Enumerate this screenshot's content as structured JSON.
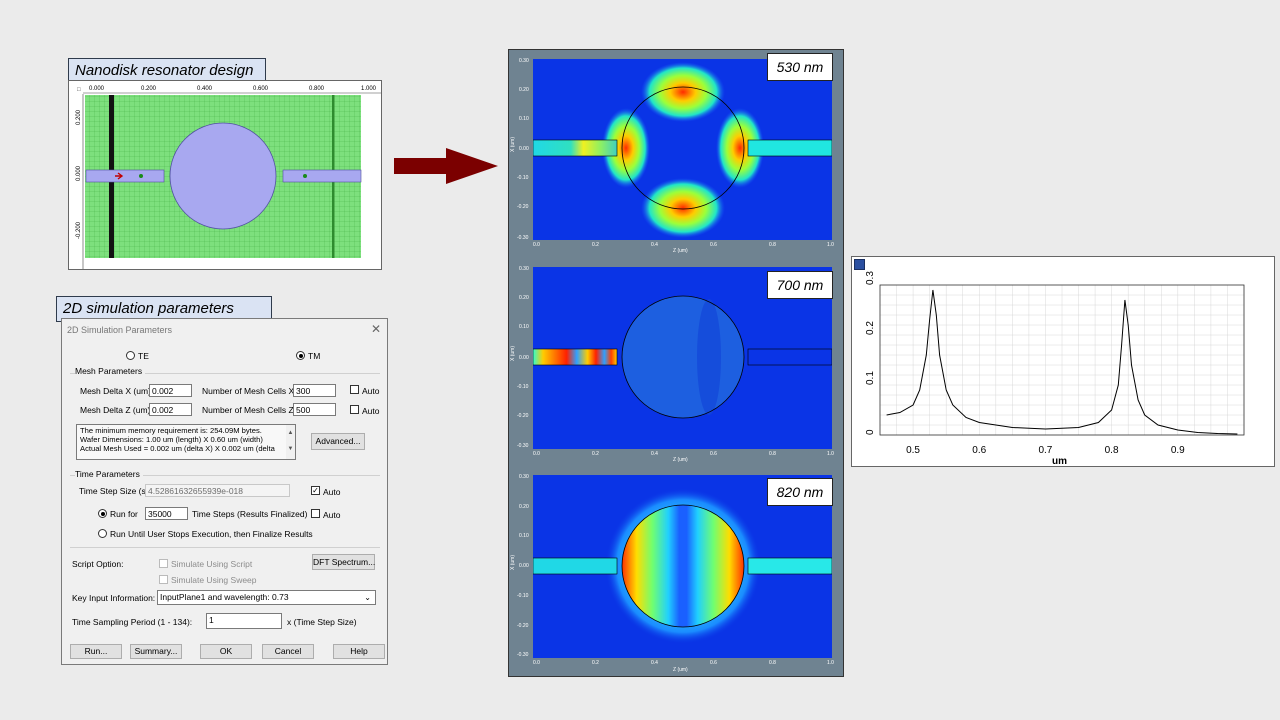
{
  "design_caption": "Nanodisk resonator design",
  "design_ruler": [
    "0.000",
    "0.200",
    "0.400",
    "0.600",
    "0.800",
    "1.000"
  ],
  "design_left_ticks": [
    "0.200",
    "0.000",
    "-0.200"
  ],
  "params_caption": "2D simulation parameters",
  "dialog": {
    "title": "2D Simulation Parameters",
    "close": "✕",
    "te_label": "TE",
    "tm_label": "TM",
    "mode_selected": "TM",
    "mesh_group": "Mesh Parameters",
    "mesh_delta_x_label": "Mesh Delta X (um)",
    "mesh_delta_x": "0.002",
    "cells_x_label": "Number of Mesh Cells X",
    "cells_x": "300",
    "mesh_delta_z_label": "Mesh Delta Z (um)",
    "mesh_delta_z": "0.002",
    "cells_z_label": "Number of Mesh Cells Z",
    "cells_z": "500",
    "auto_label": "Auto",
    "memo_lines": [
      "The minimum memory requirement is: 254.09M bytes.",
      "Wafer Dimensions: 1.00 um (length) X 0.60 um (width)",
      "Actual Mesh Used = 0.002 um (delta X) X 0.002 um (delta"
    ],
    "advanced_button": "Advanced...",
    "time_group": "Time Parameters",
    "time_step_label": "Time Step Size (s)",
    "time_step_value": "4.52861632655939e-018",
    "run_for_label": "Run for",
    "run_for_value": "35000",
    "time_steps_label": "Time Steps (Results Finalized)",
    "run_until_label": "Run Until User Stops Execution, then Finalize Results",
    "script_label": "Script Option:",
    "sim_script_label": "Simulate Using Script",
    "sim_sweep_label": "Simulate Using Sweep",
    "dft_button": "DFT Spectrum...",
    "key_input_label": "Key Input Information:",
    "key_input_value": "InputPlane1 and wavelength: 0.73",
    "sampling_label": "Time Sampling Period (1 - 134):",
    "sampling_value": "1",
    "sampling_unit": "x (Time Step Size)",
    "buttons": [
      "Run...",
      "Summary...",
      "OK",
      "Cancel",
      "Help"
    ]
  },
  "sim_panels": [
    {
      "wavelength": "530 nm",
      "mode": "530"
    },
    {
      "wavelength": "700 nm",
      "mode": "700"
    },
    {
      "wavelength": "820 nm",
      "mode": "820"
    }
  ],
  "sim_axis": {
    "x_ticks": [
      "0.0",
      "0.2",
      "0.4",
      "0.6",
      "0.8",
      "1.0"
    ],
    "y_ticks": [
      "0.30",
      "0.20",
      "0.10",
      "0.00",
      "-0.10",
      "-0.20",
      "-0.30"
    ],
    "x_label": "Z (um)",
    "y_label": "X (um)"
  },
  "colors": {
    "grid_green": "#7de07d",
    "waveguide": "#a8a8f0",
    "arrow": "#7b0000",
    "caption_bg": "#dae3f3",
    "field_bg": "#0a34e6"
  },
  "chart_data": {
    "type": "line",
    "title": "",
    "xlabel": "um",
    "ylabel": "",
    "xlim": [
      0.45,
      1.0
    ],
    "ylim": [
      0,
      0.3
    ],
    "xticks": [
      "0.5",
      "0.6",
      "0.7",
      "0.8",
      "0.9"
    ],
    "yticks": [
      "0",
      "0.1",
      "0.2",
      "0.3"
    ],
    "grid": true,
    "series": [
      {
        "x": [
          0.46,
          0.48,
          0.5,
          0.51,
          0.52,
          0.525,
          0.53,
          0.535,
          0.54,
          0.55,
          0.56,
          0.58,
          0.6,
          0.65,
          0.7,
          0.75,
          0.78,
          0.8,
          0.81,
          0.815,
          0.82,
          0.825,
          0.83,
          0.84,
          0.85,
          0.87,
          0.9,
          0.93,
          0.96,
          0.99
        ],
        "y": [
          0.04,
          0.045,
          0.06,
          0.09,
          0.16,
          0.23,
          0.29,
          0.24,
          0.16,
          0.09,
          0.06,
          0.035,
          0.025,
          0.015,
          0.012,
          0.015,
          0.025,
          0.05,
          0.1,
          0.18,
          0.27,
          0.22,
          0.14,
          0.07,
          0.04,
          0.02,
          0.01,
          0.005,
          0.003,
          0.002
        ]
      }
    ]
  }
}
